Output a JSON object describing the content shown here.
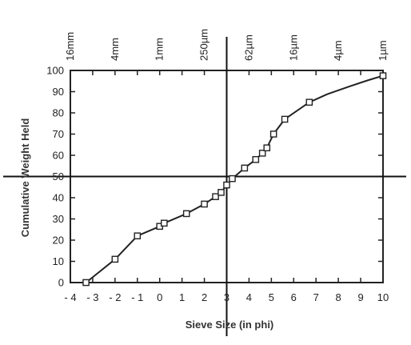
{
  "chart_data": {
    "type": "line",
    "title": "",
    "xlabel": "Sieve Size (in phi)",
    "ylabel": "Cumulative Weight Held",
    "xlim": [
      -4,
      10
    ],
    "ylim": [
      0,
      100
    ],
    "x_ticks": [
      "- 4",
      "- 3",
      "- 2",
      "- 1",
      "0",
      "1",
      "2",
      "3",
      "4",
      "5",
      "6",
      "7",
      "8",
      "9",
      "10"
    ],
    "y_ticks": [
      "0",
      "10",
      "20",
      "30",
      "40",
      "50",
      "60",
      "70",
      "80",
      "90",
      "100"
    ],
    "top_axis_labels": [
      {
        "x": -4,
        "label": "16mm"
      },
      {
        "x": -2,
        "label": "4mm"
      },
      {
        "x": 0,
        "label": "1mm"
      },
      {
        "x": 2,
        "label": "250µm"
      },
      {
        "x": 4,
        "label": "62µm"
      },
      {
        "x": 6,
        "label": "16µm"
      },
      {
        "x": 8,
        "label": "4µm"
      },
      {
        "x": 10,
        "label": "1µm"
      }
    ],
    "reference_lines": {
      "x": 3,
      "y": 50
    },
    "series": [
      {
        "marker": "square",
        "points": [
          {
            "x": -3.3,
            "y": 0
          },
          {
            "x": -2.0,
            "y": 11
          },
          {
            "x": -1.0,
            "y": 22
          },
          {
            "x": 0.0,
            "y": 26.5
          },
          {
            "x": 0.2,
            "y": 28
          },
          {
            "x": 1.2,
            "y": 32.5
          },
          {
            "x": 2.0,
            "y": 37
          },
          {
            "x": 2.5,
            "y": 40.5
          },
          {
            "x": 2.75,
            "y": 42.5
          },
          {
            "x": 3.0,
            "y": 46
          },
          {
            "x": 3.25,
            "y": 49
          },
          {
            "x": 3.8,
            "y": 54
          },
          {
            "x": 4.3,
            "y": 58
          },
          {
            "x": 4.6,
            "y": 61
          },
          {
            "x": 4.8,
            "y": 63.5
          },
          {
            "x": 5.1,
            "y": 70
          },
          {
            "x": 5.6,
            "y": 77
          },
          {
            "x": 6.7,
            "y": 85
          },
          {
            "x": 10.0,
            "y": 97.5
          }
        ]
      }
    ],
    "curve_smooth_points": [
      {
        "x": 6.7,
        "y": 85
      },
      {
        "x": 7.5,
        "y": 88.8
      },
      {
        "x": 8.5,
        "y": 92.5
      },
      {
        "x": 9.3,
        "y": 95.3
      },
      {
        "x": 10.0,
        "y": 97.5
      }
    ]
  }
}
